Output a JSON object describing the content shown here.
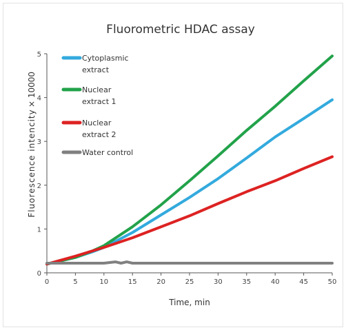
{
  "chart_data": {
    "type": "line",
    "title": "Fluorometric HDAC assay",
    "xlabel": "Time, min",
    "ylabel": "Fluorescence intencity",
    "ylabel_multiplier": "× 10000",
    "xlim": [
      0,
      50
    ],
    "ylim": [
      0,
      5
    ],
    "xticks": [
      0,
      5,
      10,
      15,
      20,
      25,
      30,
      35,
      40,
      45,
      50
    ],
    "yticks": [
      0,
      1,
      2,
      3,
      4,
      5
    ],
    "grid": false,
    "legend_position": "top-left",
    "series": [
      {
        "name_lines": [
          "Cytoplasmic",
          "extract"
        ],
        "color": "#33aadd",
        "x": [
          0,
          5,
          8,
          10,
          15,
          20,
          25,
          30,
          35,
          40,
          45,
          50
        ],
        "y": [
          0.2,
          0.35,
          0.48,
          0.58,
          0.92,
          1.32,
          1.72,
          2.15,
          2.62,
          3.1,
          3.52,
          3.95
        ]
      },
      {
        "name_lines": [
          "Nuclear",
          "extract 1"
        ],
        "color": "#22a24a",
        "x": [
          0,
          5,
          8,
          10,
          15,
          20,
          25,
          30,
          35,
          40,
          45,
          50
        ],
        "y": [
          0.2,
          0.35,
          0.5,
          0.62,
          1.05,
          1.55,
          2.1,
          2.67,
          3.25,
          3.8,
          4.38,
          4.95
        ]
      },
      {
        "name_lines": [
          "Nuclear",
          "extract 2"
        ],
        "color": "#dd2222",
        "x": [
          0,
          5,
          10,
          15,
          20,
          25,
          30,
          35,
          40,
          45,
          50
        ],
        "y": [
          0.2,
          0.38,
          0.58,
          0.8,
          1.05,
          1.3,
          1.58,
          1.85,
          2.1,
          2.38,
          2.65
        ]
      },
      {
        "name_lines": [
          "Water control"
        ],
        "color": "#808080",
        "x": [
          0,
          5,
          10,
          12,
          13,
          14,
          15,
          20,
          25,
          30,
          35,
          40,
          45,
          50
        ],
        "y": [
          0.22,
          0.22,
          0.22,
          0.25,
          0.22,
          0.25,
          0.22,
          0.22,
          0.22,
          0.22,
          0.22,
          0.22,
          0.22,
          0.22
        ]
      }
    ]
  }
}
